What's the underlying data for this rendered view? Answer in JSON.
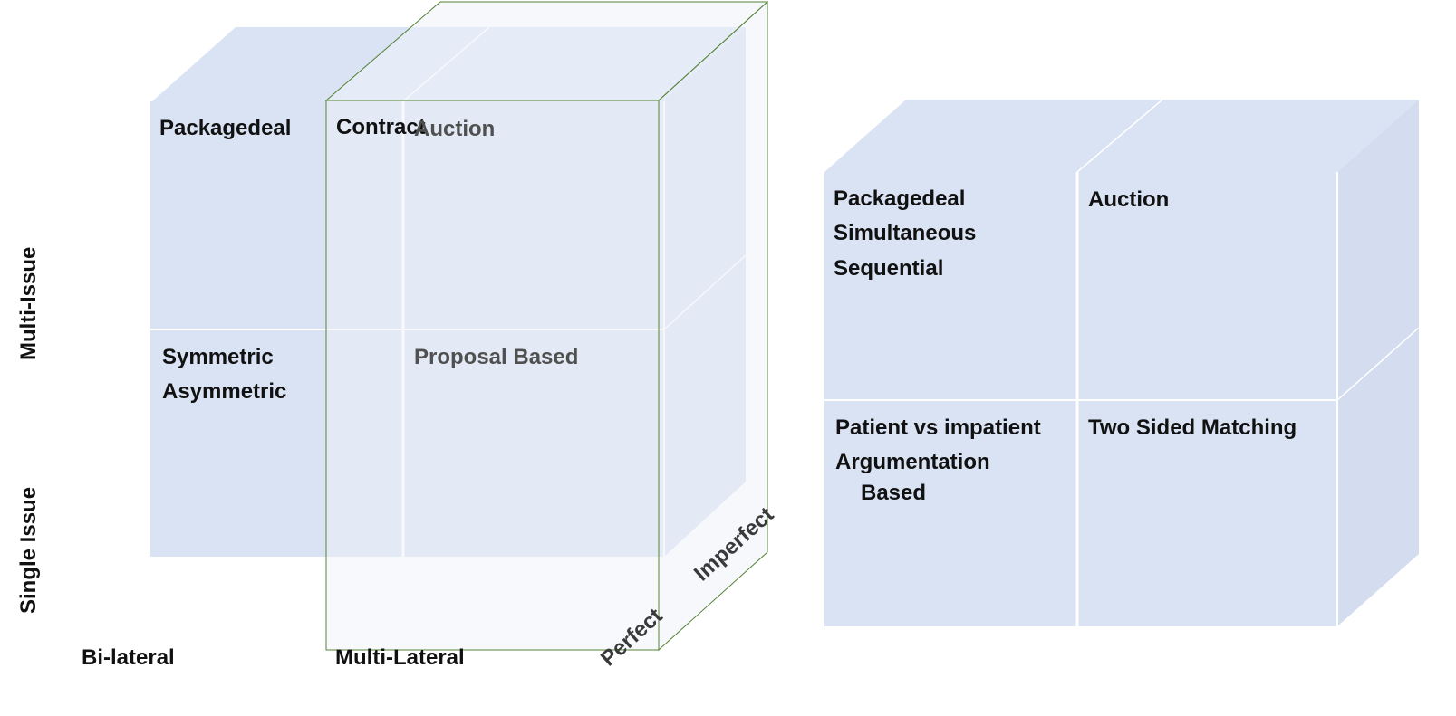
{
  "left_cube": {
    "cells": {
      "top_left": "Packagedeal",
      "contract": "Contract",
      "auction": "Auction",
      "bottom_left_1": "Symmetric",
      "bottom_left_2": "Asymmetric",
      "proposal": "Proposal Based"
    },
    "axes": {
      "y_top": "Multi-Issue",
      "y_bottom": "Single Issue",
      "x_left": "Bi-lateral",
      "x_right": "Multi-Lateral",
      "z_front": "Perfect",
      "z_back": "Imperfect"
    }
  },
  "right_cube": {
    "cells": {
      "top_left_1": "Packagedeal",
      "top_left_2": "Simultaneous",
      "top_left_3": "Sequential",
      "top_right": "Auction",
      "bottom_left_1": "Patient vs impatient",
      "bottom_left_2": "Argumentation",
      "bottom_left_3": "Based",
      "bottom_right": "Two Sided Matching"
    }
  },
  "colors": {
    "cube_face": "#dae3f3",
    "cube_side": "#d5def0",
    "cube_divider": "#ffffff",
    "transparent_box": "#eef2fa",
    "box_outline": "#548235"
  }
}
